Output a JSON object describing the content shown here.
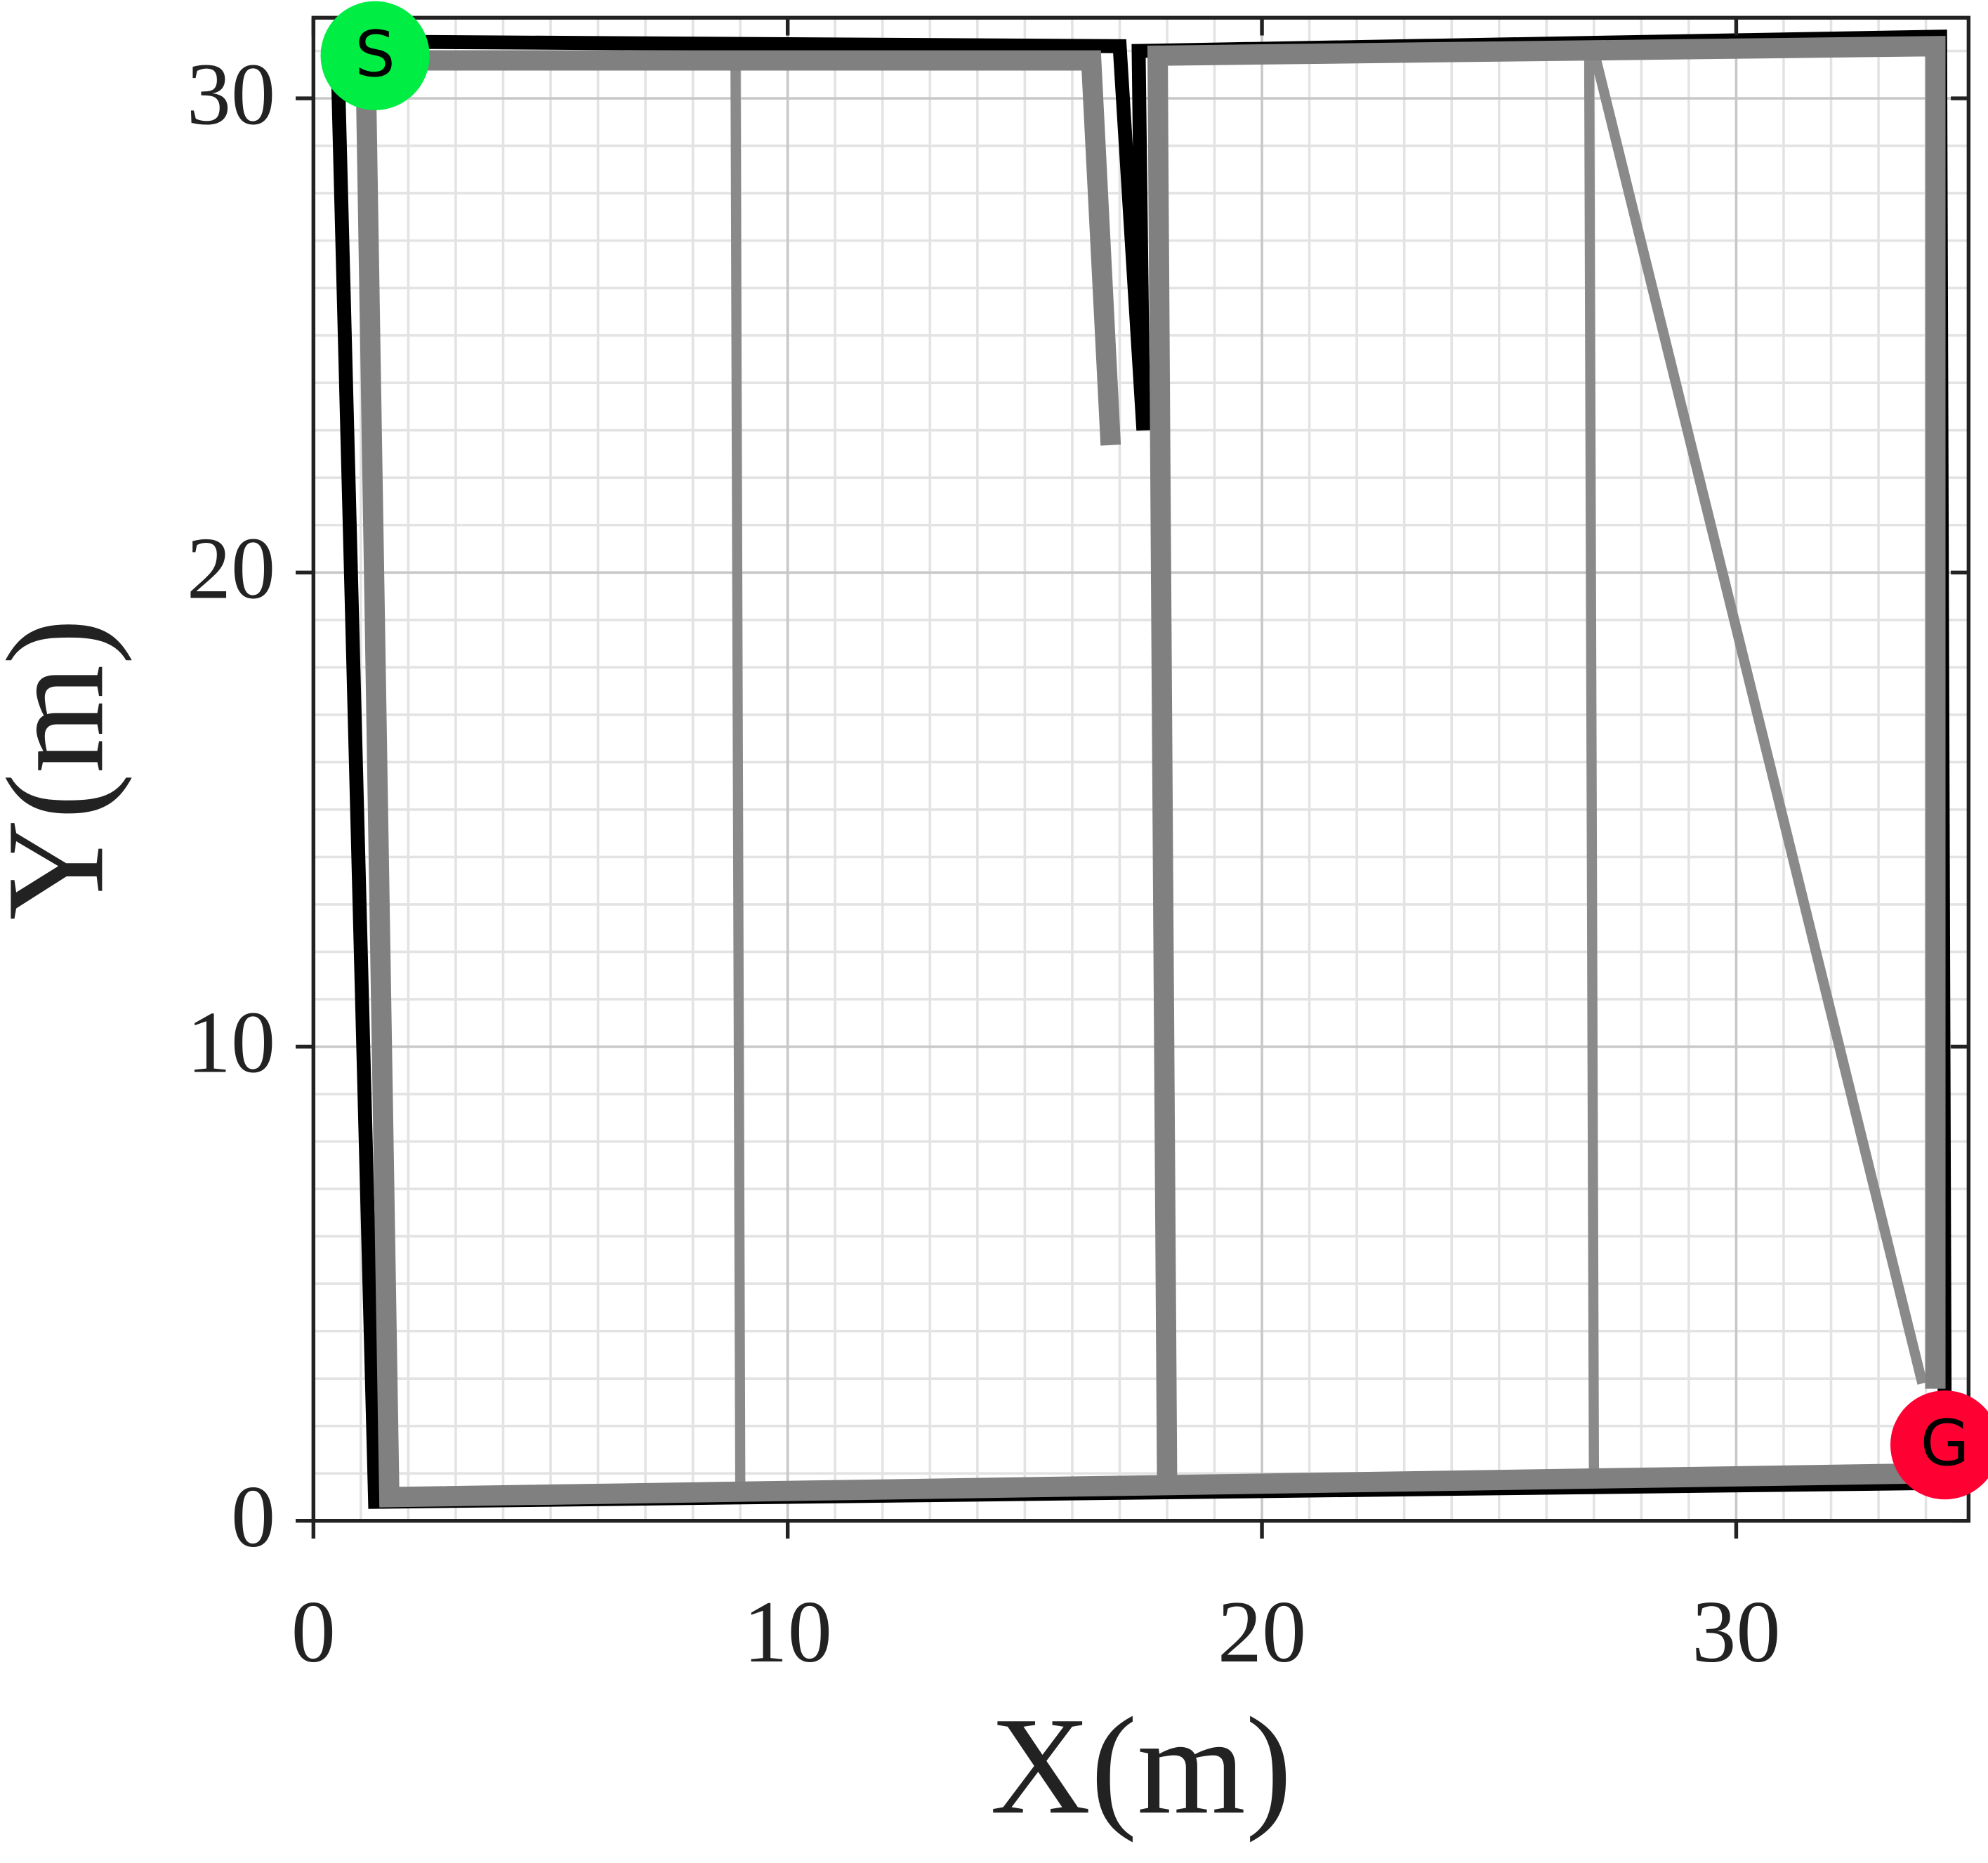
{
  "chart_data": {
    "type": "line",
    "xlabel": "X(m)",
    "ylabel": "Y(m)",
    "xlim": [
      0,
      34.9
    ],
    "ylim": [
      0,
      31.7
    ],
    "xticks": [
      0,
      10,
      20,
      30
    ],
    "yticks": [
      0,
      10,
      20,
      30
    ],
    "xminorticks": [
      1,
      2,
      3,
      4,
      5,
      6,
      7,
      8,
      9,
      11,
      12,
      13,
      14,
      15,
      16,
      17,
      18,
      19,
      21,
      22,
      23,
      24,
      25,
      26,
      27,
      28,
      29,
      31,
      32,
      33,
      34
    ],
    "yminorticks": [
      1,
      2,
      3,
      4,
      5,
      6,
      7,
      8,
      9,
      11,
      12,
      13,
      14,
      15,
      16,
      17,
      18,
      19,
      21,
      22,
      23,
      24,
      25,
      26,
      27,
      28,
      29,
      31
    ],
    "grid": true,
    "series": [
      {
        "color": "#8a8a8a",
        "line_width": 8,
        "x": [
          9.0,
          8.9,
          null,
          26.9,
          27.0,
          null,
          27.0,
          33.9
        ],
        "values": [
          0.8,
          30.8,
          null,
          31.0,
          1.0,
          null,
          31.0,
          3.0
        ]
      },
      {
        "color": "#000000",
        "line_width": 11,
        "x": [
          0.5,
          17.0,
          17.5,
          17.4,
          34.3,
          34.4,
          1.3,
          0.5
        ],
        "values": [
          31.2,
          31.1,
          23.0,
          31.0,
          31.3,
          0.8,
          0.4,
          31.2
        ]
      },
      {
        "color": "#808080",
        "line_width": 16,
        "x": [
          1.6,
          1.1,
          16.4,
          16.8,
          null,
          18.0,
          17.8,
          34.2,
          34.2,
          null,
          1.6,
          34.0
        ],
        "values": [
          0.5,
          30.8,
          30.8,
          22.9,
          null,
          0.8,
          30.9,
          31.1,
          3.0,
          null,
          0.5,
          1.0
        ]
      }
    ],
    "annotations": [
      {
        "text": "S",
        "x": 1.3,
        "y": 30.9,
        "color": "#00ee44"
      },
      {
        "text": "G",
        "x": 34.4,
        "y": 1.6,
        "color": "#ff0033"
      }
    ]
  }
}
